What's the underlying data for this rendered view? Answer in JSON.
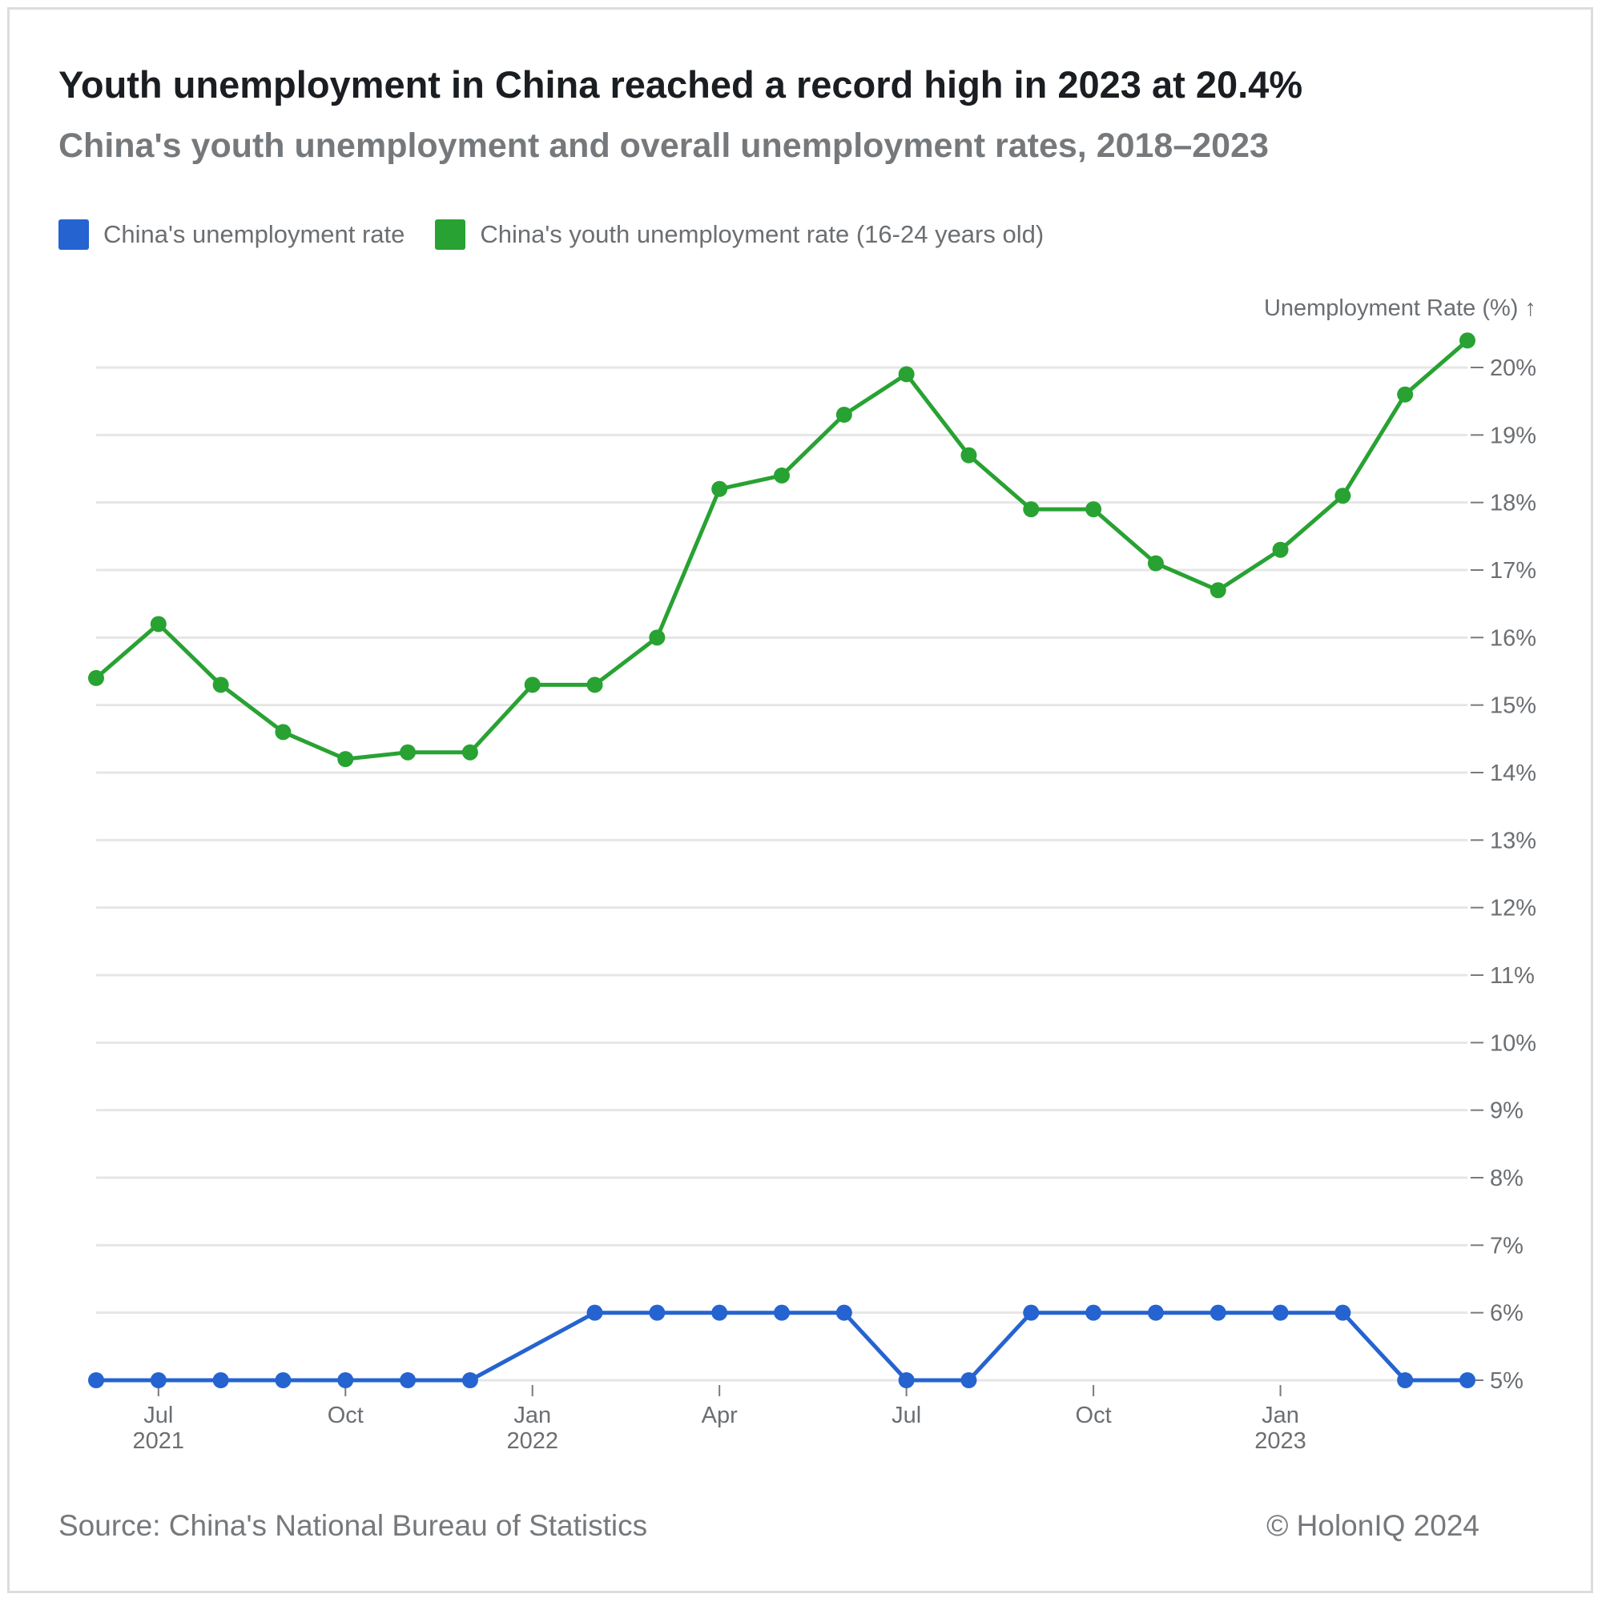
{
  "title": "Youth unemployment in China reached a record high in 2023 at 20.4%",
  "subtitle": "China's youth unemployment and overall unemployment rates, 2018–2023",
  "source": "Source: China's National Bureau of Statistics",
  "copyright": "© HolonIQ 2024",
  "colors": {
    "overall": "#2563d0",
    "youth": "#28a232"
  },
  "chart_data": {
    "type": "line",
    "x": [
      "2021-06",
      "2021-07",
      "2021-08",
      "2021-09",
      "2021-10",
      "2021-11",
      "2021-12",
      "2022-01",
      "2022-02",
      "2022-03",
      "2022-04",
      "2022-05",
      "2022-06",
      "2022-07",
      "2022-08",
      "2022-09",
      "2022-10",
      "2022-11",
      "2022-12",
      "2023-01",
      "2023-02",
      "2023-03",
      "2023-04",
      "2023-05"
    ],
    "series": [
      {
        "name": "China's unemployment rate",
        "color": "#2563d0",
        "values": [
          5.0,
          5.0,
          5.0,
          5.0,
          5.0,
          5.0,
          5.0,
          null,
          6.0,
          6.0,
          6.0,
          6.0,
          6.0,
          5.0,
          5.0,
          6.0,
          6.0,
          6.0,
          6.0,
          6.0,
          6.0,
          5.0,
          5.0,
          null
        ]
      },
      {
        "name": "China's youth unemployment rate (16-24 years old)",
        "color": "#28a232",
        "values": [
          15.4,
          16.2,
          15.3,
          14.6,
          14.2,
          14.3,
          14.3,
          15.3,
          15.3,
          16.0,
          18.2,
          18.4,
          19.3,
          19.9,
          18.7,
          17.9,
          17.9,
          17.1,
          16.7,
          17.3,
          18.1,
          19.6,
          20.4,
          null
        ]
      }
    ],
    "ylabel": "Unemployment Rate (%) ↑",
    "ylim": [
      5,
      20
    ],
    "yticks": [
      "5%",
      "6%",
      "7%",
      "8%",
      "9%",
      "10%",
      "11%",
      "12%",
      "13%",
      "14%",
      "15%",
      "16%",
      "17%",
      "18%",
      "19%",
      "20%"
    ],
    "xticks": [
      {
        "month": "Jul",
        "year": "2021"
      },
      {
        "month": "Oct",
        "year": ""
      },
      {
        "month": "Jan",
        "year": "2022"
      },
      {
        "month": "Apr",
        "year": ""
      },
      {
        "month": "Jul",
        "year": ""
      },
      {
        "month": "Oct",
        "year": ""
      },
      {
        "month": "Jan",
        "year": "2023"
      }
    ],
    "y_axis_position": "right",
    "grid": true,
    "legend_position": "top-left"
  }
}
